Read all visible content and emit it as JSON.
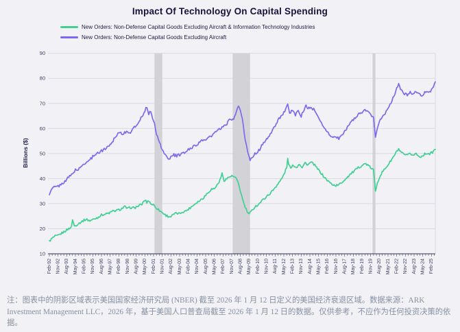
{
  "page": {
    "background": "#f1f1f6"
  },
  "header": {
    "title": "Impact Of Technology On Capital Spending"
  },
  "legend": {
    "items": [
      {
        "label": "New Orders: Non-Defense Capital Goods Excluding Aircraft & Information Technology Industries",
        "color": "#3fd092"
      },
      {
        "label": "New Orders: Non-Defense Capital Goods Excluding Aircraft",
        "color": "#7c69ee"
      }
    ]
  },
  "chart_data": {
    "type": "line",
    "title": "Impact Of Technology On Capital Spending",
    "ylabel": "Billions ($)",
    "ylim": [
      10,
      90
    ],
    "y_ticks": [
      10,
      20,
      30,
      40,
      50,
      60,
      70,
      80,
      90
    ],
    "grid": "horizontal",
    "legend_position": "top-left",
    "x_start": "1992-02",
    "x_end": "2025-06",
    "x_unit": "month",
    "x_tick_interval_months": 9,
    "x_tick_labels": [
      "Feb-92",
      "Nov-92",
      "Aug-93",
      "May-94",
      "Feb-95",
      "Nov-95",
      "Aug-96",
      "May-97",
      "Feb-98",
      "Nov-98",
      "Aug-99",
      "May-00",
      "Feb-01",
      "Nov-01",
      "Aug-02",
      "May-03",
      "Feb-04",
      "Nov-04",
      "Aug-05",
      "May-06",
      "Feb-07",
      "Nov-07",
      "Aug-08",
      "May-09",
      "Feb-10",
      "Nov-10",
      "Aug-11",
      "May-12",
      "Feb-13",
      "Nov-13",
      "Aug-14",
      "May-15",
      "Feb-16",
      "Nov-16",
      "Aug-17",
      "May-18",
      "Feb-19",
      "Nov-19",
      "Aug-20",
      "May-21",
      "Feb-22",
      "Nov-22",
      "Aug-23",
      "May-24",
      "Feb-25"
    ],
    "recession_bands": {
      "source": "NBER",
      "color": "#d3d3d7",
      "month_ranges": [
        [
          109,
          117
        ],
        [
          190,
          208
        ],
        [
          335,
          338
        ]
      ]
    },
    "series": [
      {
        "name": "New Orders: Non-Defense Capital Goods Excluding Aircraft & Information Technology Industries",
        "color": "#3fd092",
        "jitter": 0.45,
        "anchors": [
          [
            0,
            15
          ],
          [
            3,
            16.2
          ],
          [
            6,
            17
          ],
          [
            9,
            17.2
          ],
          [
            12,
            18
          ],
          [
            16,
            19
          ],
          [
            20,
            20
          ],
          [
            23,
            20.8
          ],
          [
            24,
            23.8
          ],
          [
            26,
            21
          ],
          [
            30,
            22
          ],
          [
            34,
            23
          ],
          [
            38,
            23.8
          ],
          [
            42,
            23.2
          ],
          [
            46,
            23.8
          ],
          [
            50,
            24.5
          ],
          [
            54,
            25.5
          ],
          [
            58,
            25.8
          ],
          [
            62,
            26.3
          ],
          [
            66,
            27
          ],
          [
            70,
            27.3
          ],
          [
            74,
            27.8
          ],
          [
            78,
            28.8
          ],
          [
            81,
            28
          ],
          [
            84,
            28.5
          ],
          [
            88,
            28.3
          ],
          [
            92,
            29
          ],
          [
            96,
            29.8
          ],
          [
            99,
            31.5
          ],
          [
            101,
            30.5
          ],
          [
            103,
            31.3
          ],
          [
            105,
            30
          ],
          [
            108,
            29.5
          ],
          [
            111,
            28.3
          ],
          [
            114,
            27.3
          ],
          [
            117,
            26.5
          ],
          [
            120,
            25.5
          ],
          [
            123,
            25
          ],
          [
            126,
            24.8
          ],
          [
            129,
            25.8
          ],
          [
            132,
            26.2
          ],
          [
            135,
            26
          ],
          [
            138,
            26.8
          ],
          [
            141,
            27
          ],
          [
            144,
            27.8
          ],
          [
            148,
            29
          ],
          [
            152,
            30.3
          ],
          [
            156,
            31.3
          ],
          [
            160,
            32.5
          ],
          [
            164,
            34.3
          ],
          [
            168,
            35.8
          ],
          [
            171,
            36
          ],
          [
            174,
            37.5
          ],
          [
            177,
            39.5
          ],
          [
            179,
            42
          ],
          [
            181,
            39.3
          ],
          [
            184,
            40
          ],
          [
            187,
            40.8
          ],
          [
            190,
            41
          ],
          [
            193,
            40.3
          ],
          [
            196,
            38
          ],
          [
            199,
            33.5
          ],
          [
            202,
            29.5
          ],
          [
            205,
            26.8
          ],
          [
            207,
            25.8
          ],
          [
            210,
            27.3
          ],
          [
            213,
            28.8
          ],
          [
            216,
            29.5
          ],
          [
            220,
            31
          ],
          [
            224,
            32.5
          ],
          [
            228,
            33.8
          ],
          [
            232,
            35.5
          ],
          [
            235,
            37
          ],
          [
            238,
            38.5
          ],
          [
            241,
            40
          ],
          [
            244,
            42.5
          ],
          [
            246,
            44.5
          ],
          [
            247,
            47.8
          ],
          [
            248,
            46
          ],
          [
            250,
            44
          ],
          [
            253,
            45.5
          ],
          [
            256,
            44.3
          ],
          [
            259,
            46
          ],
          [
            262,
            44.5
          ],
          [
            265,
            46.3
          ],
          [
            268,
            45.5
          ],
          [
            271,
            46.5
          ],
          [
            274,
            45.8
          ],
          [
            277,
            44.3
          ],
          [
            280,
            43
          ],
          [
            284,
            41
          ],
          [
            288,
            39.3
          ],
          [
            292,
            38
          ],
          [
            296,
            37.2
          ],
          [
            300,
            37.5
          ],
          [
            304,
            38.8
          ],
          [
            308,
            40.3
          ],
          [
            312,
            41.8
          ],
          [
            316,
            43
          ],
          [
            320,
            44.3
          ],
          [
            324,
            45.3
          ],
          [
            328,
            46
          ],
          [
            331,
            45
          ],
          [
            334,
            44
          ],
          [
            336,
            43.5
          ],
          [
            338,
            34.8
          ],
          [
            340,
            38.5
          ],
          [
            342,
            40.5
          ],
          [
            344,
            42
          ],
          [
            348,
            44
          ],
          [
            352,
            46
          ],
          [
            355,
            47.8
          ],
          [
            358,
            49.5
          ],
          [
            360,
            50.8
          ],
          [
            362,
            51.8
          ],
          [
            364,
            50.5
          ],
          [
            366,
            50
          ],
          [
            368,
            49.5
          ],
          [
            371,
            49.2
          ],
          [
            374,
            50
          ],
          [
            377,
            49.3
          ],
          [
            380,
            50
          ],
          [
            383,
            48.8
          ],
          [
            386,
            48.9
          ],
          [
            389,
            49.8
          ],
          [
            392,
            50.2
          ],
          [
            394,
            49.8
          ],
          [
            396,
            50.3
          ],
          [
            398,
            50.8
          ],
          [
            400,
            51.8
          ]
        ]
      },
      {
        "name": "New Orders: Non-Defense Capital Goods Excluding Aircraft",
        "color": "#7c69ee",
        "jitter": 0.55,
        "anchors": [
          [
            0,
            34
          ],
          [
            4,
            36.5
          ],
          [
            8,
            36.8
          ],
          [
            12,
            37.5
          ],
          [
            16,
            39
          ],
          [
            20,
            40.5
          ],
          [
            24,
            42
          ],
          [
            27,
            43.5
          ],
          [
            30,
            43.5
          ],
          [
            36,
            46
          ],
          [
            42,
            47.5
          ],
          [
            48,
            50
          ],
          [
            52,
            50.5
          ],
          [
            56,
            51.5
          ],
          [
            60,
            52.5
          ],
          [
            64,
            54
          ],
          [
            68,
            56.5
          ],
          [
            72,
            58.5
          ],
          [
            76,
            58
          ],
          [
            80,
            58.5
          ],
          [
            84,
            58.5
          ],
          [
            87,
            60
          ],
          [
            90,
            61
          ],
          [
            93,
            63
          ],
          [
            96,
            65
          ],
          [
            99,
            67
          ],
          [
            101,
            68.7
          ],
          [
            103,
            66
          ],
          [
            105,
            66.5
          ],
          [
            107,
            64
          ],
          [
            109,
            62.5
          ],
          [
            111,
            58
          ],
          [
            113,
            55.5
          ],
          [
            115,
            53.5
          ],
          [
            117,
            51.5
          ],
          [
            120,
            49.5
          ],
          [
            123,
            48
          ],
          [
            126,
            48.5
          ],
          [
            129,
            49.5
          ],
          [
            132,
            49
          ],
          [
            135,
            49.5
          ],
          [
            138,
            50
          ],
          [
            141,
            50.5
          ],
          [
            144,
            51.5
          ],
          [
            148,
            52.5
          ],
          [
            152,
            53.5
          ],
          [
            156,
            54.5
          ],
          [
            160,
            55.5
          ],
          [
            164,
            56
          ],
          [
            168,
            57
          ],
          [
            172,
            58.5
          ],
          [
            176,
            59.5
          ],
          [
            180,
            60.5
          ],
          [
            184,
            62
          ],
          [
            187,
            63.5
          ],
          [
            190,
            63.5
          ],
          [
            193,
            65.5
          ],
          [
            196,
            68.8
          ],
          [
            198,
            67.5
          ],
          [
            200,
            63.5
          ],
          [
            202,
            58
          ],
          [
            204,
            53.5
          ],
          [
            206,
            49.5
          ],
          [
            208,
            47.5
          ],
          [
            210,
            48.5
          ],
          [
            213,
            50
          ],
          [
            216,
            50.5
          ],
          [
            220,
            53
          ],
          [
            224,
            55.5
          ],
          [
            228,
            57
          ],
          [
            232,
            59.5
          ],
          [
            235,
            62
          ],
          [
            238,
            64
          ],
          [
            241,
            65.5
          ],
          [
            244,
            66.5
          ],
          [
            247,
            69.3
          ],
          [
            249,
            66
          ],
          [
            252,
            67.5
          ],
          [
            255,
            65.5
          ],
          [
            258,
            67
          ],
          [
            261,
            65
          ],
          [
            264,
            67.5
          ],
          [
            266,
            69
          ],
          [
            268,
            68
          ],
          [
            271,
            68.5
          ],
          [
            274,
            67.5
          ],
          [
            277,
            65.5
          ],
          [
            280,
            63.5
          ],
          [
            284,
            61
          ],
          [
            288,
            58.5
          ],
          [
            292,
            57
          ],
          [
            296,
            56.5
          ],
          [
            300,
            56
          ],
          [
            304,
            57.5
          ],
          [
            308,
            60
          ],
          [
            312,
            62.5
          ],
          [
            316,
            64
          ],
          [
            320,
            65.5
          ],
          [
            324,
            66.5
          ],
          [
            328,
            67.5
          ],
          [
            330,
            66.5
          ],
          [
            333,
            65.5
          ],
          [
            336,
            64.5
          ],
          [
            338,
            57
          ],
          [
            340,
            60.5
          ],
          [
            342,
            62.5
          ],
          [
            344,
            64
          ],
          [
            348,
            66
          ],
          [
            352,
            68.5
          ],
          [
            355,
            71
          ],
          [
            358,
            74
          ],
          [
            360,
            76
          ],
          [
            362,
            77.8
          ],
          [
            364,
            75.5
          ],
          [
            366,
            74.5
          ],
          [
            368,
            74
          ],
          [
            371,
            73.5
          ],
          [
            374,
            74.5
          ],
          [
            377,
            73.8
          ],
          [
            380,
            74.8
          ],
          [
            383,
            73.5
          ],
          [
            386,
            73.2
          ],
          [
            389,
            74.5
          ],
          [
            392,
            75
          ],
          [
            394,
            74.5
          ],
          [
            396,
            75.5
          ],
          [
            398,
            76.5
          ],
          [
            400,
            78.2
          ]
        ]
      }
    ]
  },
  "footnote": {
    "text": "注：图表中的阴影区域表示美国国家经济研究局 (NBER) 截至 2026 年 1 月 12 日定义的美国经济衰退区域。数据来源：ARK Investment Management LLC，2026 年，基于美国人口普查局截至 2026 年 1 月 12 日的数据。仅供参考，不应作为任何投资决策的依据。",
    "color": "#8691a0"
  }
}
